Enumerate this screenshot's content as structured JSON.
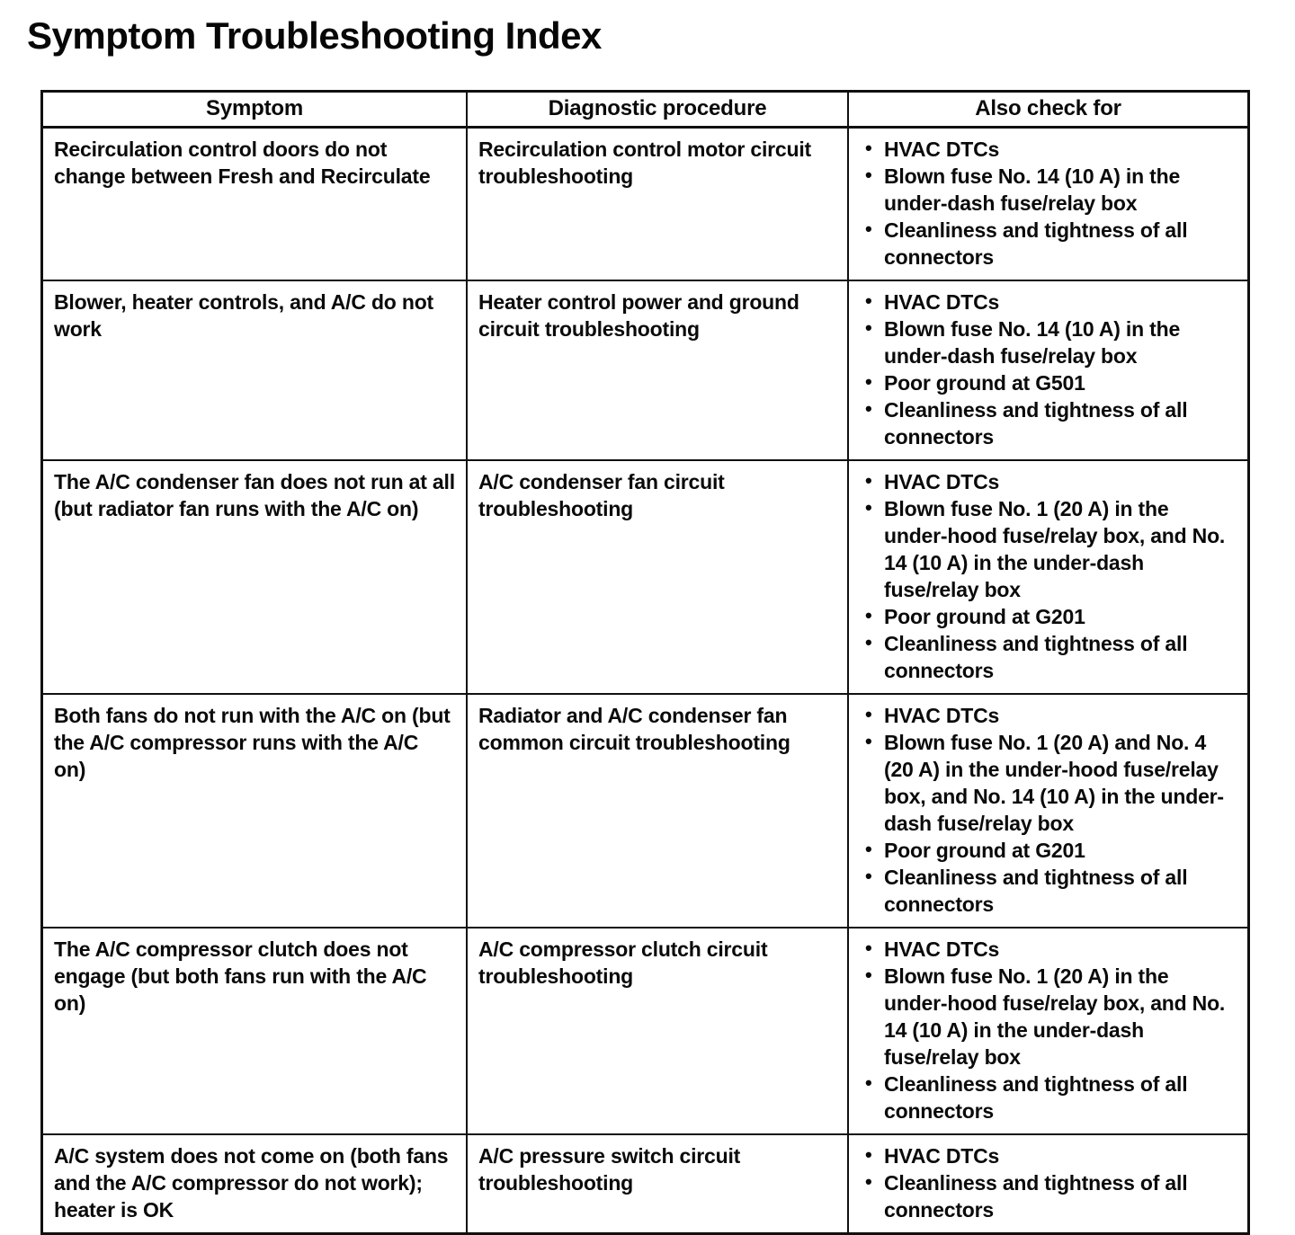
{
  "page": {
    "title": "Symptom Troubleshooting Index"
  },
  "table": {
    "columns": [
      "Symptom",
      "Diagnostic procedure",
      "Also check for"
    ],
    "rows": [
      {
        "symptom": "Recirculation control doors do not change between Fresh and Recirculate",
        "procedure": "Recirculation control motor circuit troubleshooting",
        "checks": [
          "HVAC DTCs",
          "Blown fuse No. 14 (10 A) in the under-dash fuse/relay box",
          "Cleanliness and tightness of all connectors"
        ]
      },
      {
        "symptom": "Blower, heater controls, and A/C do not work",
        "procedure": "Heater control power and ground circuit troubleshooting",
        "checks": [
          "HVAC DTCs",
          "Blown fuse No. 14 (10 A) in the under-dash fuse/relay box",
          "Poor ground at G501",
          "Cleanliness and tightness of all connectors"
        ]
      },
      {
        "symptom": "The A/C condenser fan does not run at all (but radiator fan runs with the A/C on)",
        "procedure": "A/C condenser fan circuit troubleshooting",
        "checks": [
          "HVAC DTCs",
          "Blown fuse No. 1 (20 A) in the under-hood fuse/relay box, and No. 14 (10 A) in the under-dash fuse/relay box",
          "Poor ground at G201",
          "Cleanliness and tightness of all connectors"
        ]
      },
      {
        "symptom": "Both fans do not run with the A/C on (but the A/C compressor runs with the A/C on)",
        "procedure": "Radiator and A/C condenser fan common circuit troubleshooting",
        "checks": [
          "HVAC DTCs",
          "Blown fuse No. 1 (20 A) and No. 4 (20 A) in the under-hood fuse/relay box, and No. 14 (10 A) in the under-dash fuse/relay box",
          "Poor ground at G201",
          "Cleanliness and tightness of all connectors"
        ]
      },
      {
        "symptom": "The A/C compressor clutch does not engage (but both fans run with the A/C on)",
        "procedure": "A/C compressor clutch circuit troubleshooting",
        "checks": [
          "HVAC DTCs",
          "Blown fuse No. 1 (20 A) in the under-hood fuse/relay box, and No. 14 (10 A) in the under-dash fuse/relay box",
          "Cleanliness and tightness of all connectors"
        ]
      },
      {
        "symptom": "A/C system does not come on (both fans and the A/C compressor do not work); heater is OK",
        "procedure": "A/C pressure switch circuit troubleshooting",
        "checks": [
          "HVAC DTCs",
          "Cleanliness and tightness of all connectors"
        ]
      }
    ]
  }
}
